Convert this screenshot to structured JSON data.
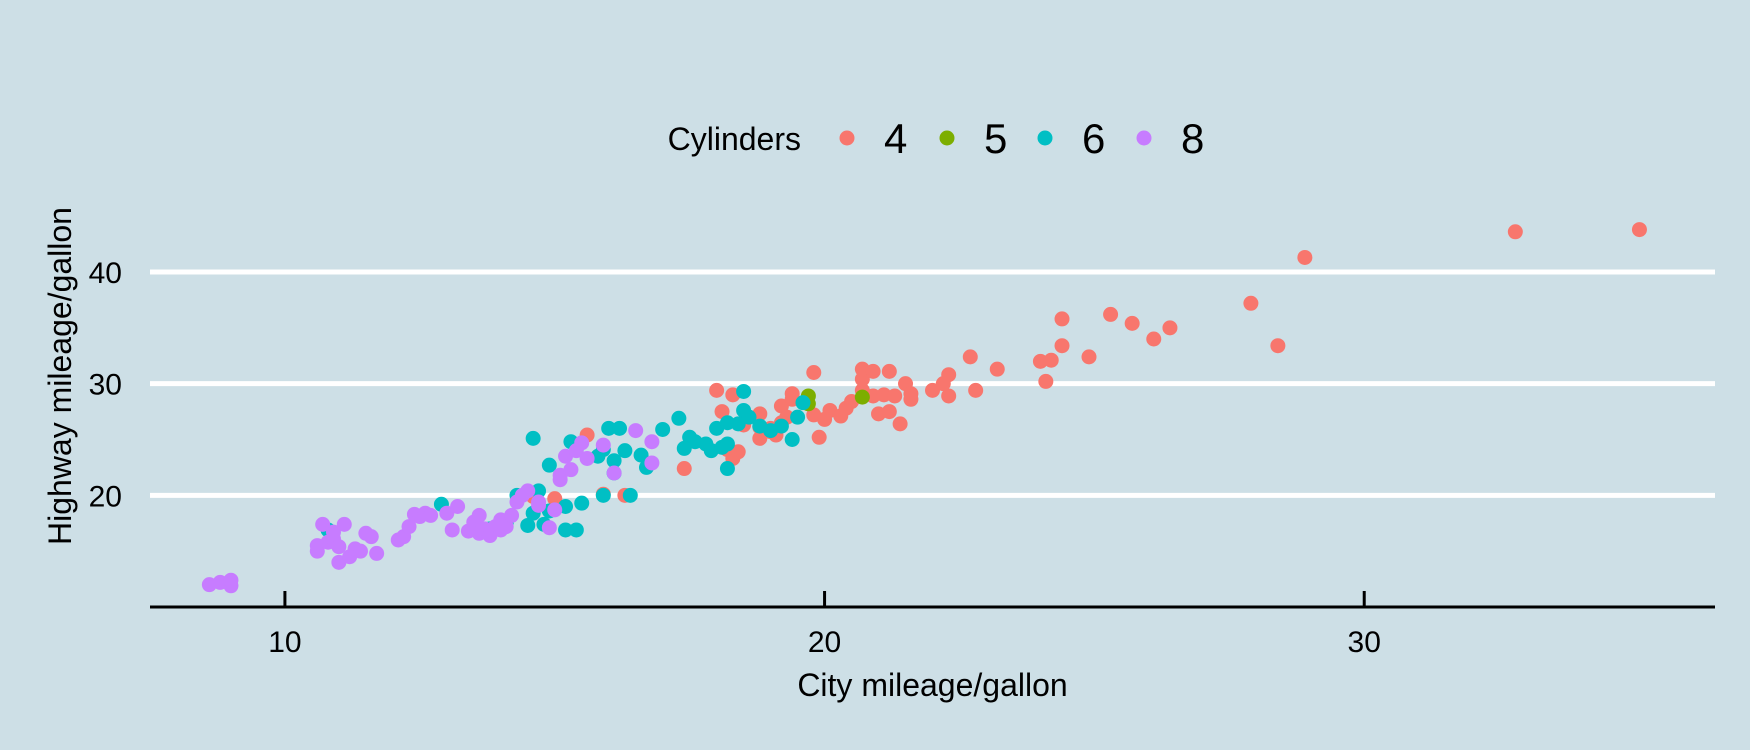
{
  "chart_data": {
    "type": "scatter",
    "title": "",
    "xlabel": "City mileage/gallon",
    "ylabel": "Highway mileage/gallon",
    "xlim": [
      7.5,
      36.5
    ],
    "ylim": [
      10,
      46
    ],
    "xticks": [
      10,
      20,
      30
    ],
    "yticks": [
      20,
      30,
      40
    ],
    "grid": "horizontal-major",
    "legend": {
      "title": "Cylinders",
      "placement": "top",
      "entries": [
        {
          "label": "4",
          "color": "#f8766d"
        },
        {
          "label": "5",
          "color": "#7cae00"
        },
        {
          "label": "6",
          "color": "#00bfc4"
        },
        {
          "label": "8",
          "color": "#c77cff"
        }
      ]
    },
    "series": [
      {
        "name": "4",
        "color": "#f8766d",
        "points": [
          [
            15.6,
            25.4
          ],
          [
            16.3,
            20.0
          ],
          [
            15.9,
            20.1
          ],
          [
            14.6,
            19.9
          ],
          [
            15.0,
            19.7
          ],
          [
            17.4,
            22.4
          ],
          [
            18.0,
            29.4
          ],
          [
            18.3,
            29.0
          ],
          [
            18.1,
            27.5
          ],
          [
            18.2,
            24.1
          ],
          [
            18.3,
            23.3
          ],
          [
            18.4,
            23.9
          ],
          [
            18.5,
            26.3
          ],
          [
            18.8,
            26.1
          ],
          [
            18.8,
            25.1
          ],
          [
            19.0,
            26.0
          ],
          [
            18.8,
            27.3
          ],
          [
            19.0,
            25.7
          ],
          [
            19.1,
            25.4
          ],
          [
            19.2,
            26.5
          ],
          [
            19.2,
            28.0
          ],
          [
            19.4,
            28.6
          ],
          [
            19.4,
            29.1
          ],
          [
            19.3,
            27.0
          ],
          [
            19.8,
            27.2
          ],
          [
            19.8,
            31.0
          ],
          [
            19.9,
            25.2
          ],
          [
            20.0,
            26.8
          ],
          [
            20.1,
            27.6
          ],
          [
            20.3,
            27.1
          ],
          [
            20.4,
            27.8
          ],
          [
            20.5,
            28.4
          ],
          [
            20.7,
            29.4
          ],
          [
            20.7,
            30.4
          ],
          [
            20.7,
            31.3
          ],
          [
            20.9,
            31.1
          ],
          [
            20.9,
            28.9
          ],
          [
            21.0,
            27.3
          ],
          [
            21.1,
            29.0
          ],
          [
            21.2,
            31.1
          ],
          [
            21.2,
            27.5
          ],
          [
            21.3,
            28.9
          ],
          [
            21.4,
            26.4
          ],
          [
            21.5,
            30.0
          ],
          [
            21.6,
            29.1
          ],
          [
            21.6,
            28.6
          ],
          [
            22.0,
            29.4
          ],
          [
            22.2,
            30.0
          ],
          [
            22.3,
            30.8
          ],
          [
            22.3,
            28.9
          ],
          [
            22.7,
            32.4
          ],
          [
            22.8,
            29.4
          ],
          [
            23.2,
            31.3
          ],
          [
            24.0,
            32.0
          ],
          [
            24.1,
            30.2
          ],
          [
            24.2,
            32.1
          ],
          [
            24.4,
            33.4
          ],
          [
            24.4,
            35.8
          ],
          [
            24.9,
            32.4
          ],
          [
            25.3,
            36.2
          ],
          [
            25.7,
            35.4
          ],
          [
            26.1,
            34.0
          ],
          [
            26.4,
            35.0
          ],
          [
            27.9,
            37.2
          ],
          [
            28.4,
            33.4
          ],
          [
            28.9,
            41.3
          ],
          [
            32.8,
            43.6
          ],
          [
            35.1,
            43.8
          ]
        ]
      },
      {
        "name": "5",
        "color": "#7cae00",
        "points": [
          [
            19.7,
            28.2
          ],
          [
            19.7,
            28.9
          ],
          [
            20.7,
            28.8
          ]
        ]
      },
      {
        "name": "6",
        "color": "#00bfc4",
        "points": [
          [
            10.8,
            16.9
          ],
          [
            12.9,
            19.2
          ],
          [
            13.6,
            16.8
          ],
          [
            13.8,
            17.0
          ],
          [
            14.1,
            17.5
          ],
          [
            14.3,
            20.0
          ],
          [
            14.5,
            17.3
          ],
          [
            14.6,
            18.4
          ],
          [
            14.7,
            20.4
          ],
          [
            14.6,
            25.1
          ],
          [
            14.8,
            17.4
          ],
          [
            14.9,
            18.6
          ],
          [
            14.9,
            22.7
          ],
          [
            15.2,
            16.9
          ],
          [
            15.2,
            19.0
          ],
          [
            15.4,
            16.9
          ],
          [
            15.5,
            19.3
          ],
          [
            15.3,
            24.8
          ],
          [
            15.8,
            23.5
          ],
          [
            15.9,
            20.0
          ],
          [
            15.9,
            24.1
          ],
          [
            16.0,
            26.0
          ],
          [
            16.1,
            23.1
          ],
          [
            16.1,
            22.0
          ],
          [
            16.2,
            26.0
          ],
          [
            16.3,
            24.0
          ],
          [
            16.4,
            20.0
          ],
          [
            16.6,
            23.6
          ],
          [
            16.7,
            22.5
          ],
          [
            17.0,
            25.9
          ],
          [
            17.3,
            26.9
          ],
          [
            17.4,
            24.2
          ],
          [
            17.5,
            25.2
          ],
          [
            17.6,
            24.8
          ],
          [
            17.8,
            24.6
          ],
          [
            17.9,
            24.0
          ],
          [
            18.0,
            26.0
          ],
          [
            18.1,
            24.3
          ],
          [
            18.2,
            22.4
          ],
          [
            18.2,
            24.6
          ],
          [
            18.2,
            26.5
          ],
          [
            18.4,
            26.4
          ],
          [
            18.5,
            27.6
          ],
          [
            18.5,
            29.3
          ],
          [
            18.6,
            27.0
          ],
          [
            18.8,
            26.2
          ],
          [
            19.0,
            25.8
          ],
          [
            19.2,
            26.2
          ],
          [
            19.4,
            25.0
          ],
          [
            19.5,
            27.0
          ],
          [
            19.6,
            28.3
          ]
        ]
      },
      {
        "name": "8",
        "color": "#c77cff",
        "points": [
          [
            8.6,
            12.0
          ],
          [
            8.8,
            12.2
          ],
          [
            9.0,
            11.9
          ],
          [
            9.0,
            12.4
          ],
          [
            10.6,
            15.0
          ],
          [
            10.6,
            15.5
          ],
          [
            10.7,
            17.4
          ],
          [
            10.8,
            15.8
          ],
          [
            10.9,
            16.7
          ],
          [
            10.9,
            16.1
          ],
          [
            11.0,
            15.4
          ],
          [
            11.1,
            17.4
          ],
          [
            11.0,
            14.0
          ],
          [
            11.2,
            14.5
          ],
          [
            11.3,
            15.2
          ],
          [
            11.4,
            15.0
          ],
          [
            11.5,
            16.6
          ],
          [
            11.6,
            16.3
          ],
          [
            11.7,
            14.8
          ],
          [
            12.1,
            16.0
          ],
          [
            12.2,
            16.3
          ],
          [
            12.3,
            17.2
          ],
          [
            12.4,
            18.3
          ],
          [
            12.5,
            18.1
          ],
          [
            12.6,
            18.4
          ],
          [
            12.7,
            18.2
          ],
          [
            13.0,
            18.4
          ],
          [
            13.1,
            16.9
          ],
          [
            13.2,
            19.0
          ],
          [
            13.4,
            16.8
          ],
          [
            13.5,
            17.6
          ],
          [
            13.6,
            16.6
          ],
          [
            13.6,
            18.2
          ],
          [
            13.7,
            17.0
          ],
          [
            13.8,
            16.4
          ],
          [
            13.9,
            17.2
          ],
          [
            14.0,
            17.8
          ],
          [
            14.0,
            16.9
          ],
          [
            14.1,
            17.2
          ],
          [
            14.2,
            18.2
          ],
          [
            14.3,
            19.4
          ],
          [
            14.4,
            20.0
          ],
          [
            14.5,
            20.4
          ],
          [
            14.7,
            19.1
          ],
          [
            14.7,
            19.4
          ],
          [
            14.9,
            17.1
          ],
          [
            15.0,
            18.7
          ],
          [
            15.1,
            21.4
          ],
          [
            15.1,
            21.8
          ],
          [
            15.2,
            23.5
          ],
          [
            15.3,
            22.3
          ],
          [
            15.4,
            24.0
          ],
          [
            15.5,
            24.7
          ],
          [
            15.6,
            23.3
          ],
          [
            15.9,
            24.5
          ],
          [
            16.1,
            22.0
          ],
          [
            16.5,
            25.8
          ],
          [
            16.8,
            24.8
          ],
          [
            16.8,
            22.9
          ]
        ]
      }
    ]
  }
}
